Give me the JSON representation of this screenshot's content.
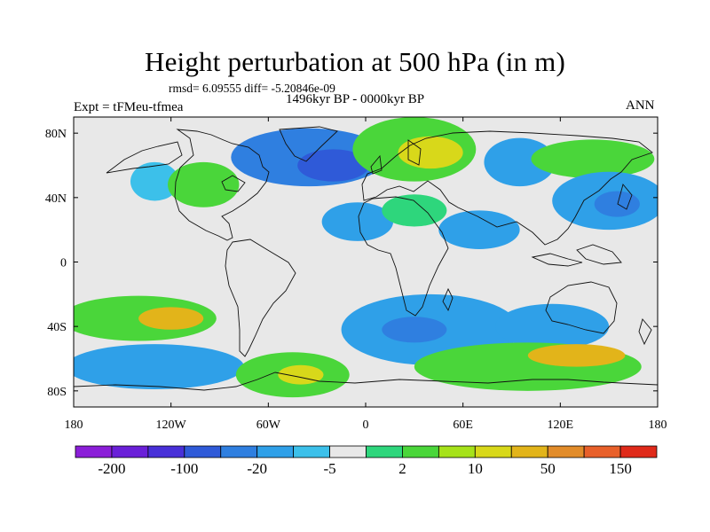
{
  "chart_data": {
    "type": "heatmap",
    "title": "Height perturbation at 500 hPa (in m)",
    "stats_line": "rmsd= 6.09555 diff= -5.20846e-09",
    "period": "1496kyr BP - 0000kyr BP",
    "experiment": "Expt = tFMeu-tfmea",
    "season": "ANN",
    "x_axis": {
      "range": [
        -180,
        180
      ],
      "ticks": [
        -180,
        -120,
        -60,
        0,
        60,
        120,
        180
      ],
      "tick_labels": [
        "180",
        "120W",
        "60W",
        "0",
        "60E",
        "120E",
        "180"
      ]
    },
    "y_axis": {
      "range": [
        -90,
        90
      ],
      "ticks": [
        80,
        40,
        0,
        -40,
        -80
      ],
      "tick_labels": [
        "80N",
        "40N",
        "0",
        "40S",
        "80S"
      ]
    },
    "colorbar": {
      "colors": [
        "#8b1ed8",
        "#6a1fd8",
        "#4830d8",
        "#2f5ad8",
        "#2f7fe0",
        "#2fa0e8",
        "#3cc0ea",
        "#e8e8e8",
        "#2ed67c",
        "#4ad63a",
        "#a6e21a",
        "#d8d81a",
        "#e2b41a",
        "#e28c2a",
        "#e8602a",
        "#e02a1a"
      ],
      "tick_labels": [
        "-200",
        "-100",
        "-20",
        "-5",
        "2",
        "10",
        "50",
        "150"
      ]
    },
    "features": [
      {
        "lon": -35,
        "lat": 65,
        "rx": 48,
        "ry": 18,
        "level": 4
      },
      {
        "lon": -20,
        "lat": 60,
        "rx": 22,
        "ry": 10,
        "level": 3
      },
      {
        "lon": 30,
        "lat": 70,
        "rx": 38,
        "ry": 20,
        "level": 9
      },
      {
        "lon": 40,
        "lat": 68,
        "rx": 20,
        "ry": 10,
        "level": 11
      },
      {
        "lon": 95,
        "lat": 62,
        "rx": 22,
        "ry": 15,
        "level": 5
      },
      {
        "lon": 140,
        "lat": 64,
        "rx": 38,
        "ry": 12,
        "level": 9
      },
      {
        "lon": 150,
        "lat": 38,
        "rx": 35,
        "ry": 18,
        "level": 5
      },
      {
        "lon": 155,
        "lat": 36,
        "rx": 14,
        "ry": 8,
        "level": 4
      },
      {
        "lon": -130,
        "lat": 50,
        "rx": 15,
        "ry": 12,
        "level": 6
      },
      {
        "lon": -100,
        "lat": 48,
        "rx": 22,
        "ry": 14,
        "level": 9
      },
      {
        "lon": -5,
        "lat": 25,
        "rx": 22,
        "ry": 12,
        "level": 5
      },
      {
        "lon": 30,
        "lat": 32,
        "rx": 20,
        "ry": 10,
        "level": 8
      },
      {
        "lon": 70,
        "lat": 20,
        "rx": 25,
        "ry": 12,
        "level": 5
      },
      {
        "lon": -140,
        "lat": -35,
        "rx": 48,
        "ry": 14,
        "level": 9
      },
      {
        "lon": -120,
        "lat": -35,
        "rx": 20,
        "ry": 7,
        "level": 12
      },
      {
        "lon": -130,
        "lat": -65,
        "rx": 55,
        "ry": 14,
        "level": 5
      },
      {
        "lon": -45,
        "lat": -70,
        "rx": 35,
        "ry": 14,
        "level": 9
      },
      {
        "lon": -40,
        "lat": -70,
        "rx": 14,
        "ry": 6,
        "level": 11
      },
      {
        "lon": 40,
        "lat": -42,
        "rx": 55,
        "ry": 22,
        "level": 5
      },
      {
        "lon": 30,
        "lat": -42,
        "rx": 20,
        "ry": 8,
        "level": 4
      },
      {
        "lon": 115,
        "lat": -40,
        "rx": 35,
        "ry": 14,
        "level": 5
      },
      {
        "lon": 100,
        "lat": -65,
        "rx": 70,
        "ry": 15,
        "level": 9
      },
      {
        "lon": 130,
        "lat": -58,
        "rx": 30,
        "ry": 7,
        "level": 12
      }
    ]
  }
}
